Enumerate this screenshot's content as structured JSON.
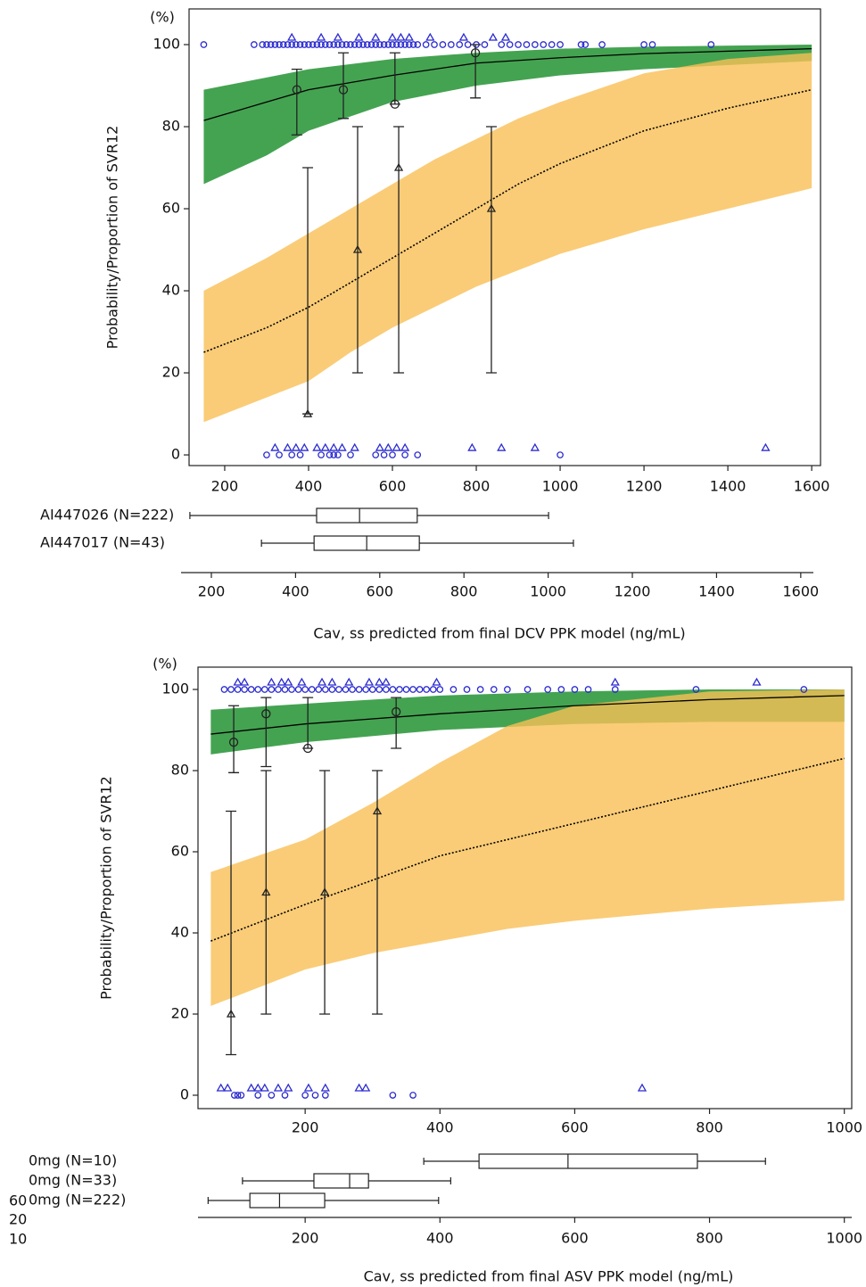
{
  "chart_data": [
    {
      "type": "line",
      "unit_label": "(%)",
      "ylabel": "Probability/Proportion of SVR12",
      "xlabel": "Cav, ss predicted from final DCV PPK model (ng/mL)",
      "xlim": [
        115,
        1621
      ],
      "xticks": [
        200,
        400,
        600,
        800,
        1000,
        1200,
        1400,
        1600
      ],
      "ylim": [
        -2.6,
        108.7
      ],
      "yticks": [
        0,
        20,
        40,
        60,
        80,
        100
      ],
      "curves": [
        {
          "style": "solid",
          "color": "#000000",
          "band_color": "#3a9e48",
          "x": [
            150,
            300,
            400,
            600,
            800,
            1000,
            1200,
            1600
          ],
          "values": [
            81.5,
            86,
            89,
            92.5,
            95.5,
            96.8,
            97.8,
            99
          ],
          "lower": [
            66,
            73,
            79,
            86,
            90,
            92.5,
            94,
            96
          ],
          "upper": [
            89,
            92,
            94,
            96.5,
            98,
            99,
            99.5,
            100
          ]
        },
        {
          "style": "dashed",
          "color": "#000000",
          "band_color": "#f9bf55",
          "x": [
            150,
            300,
            400,
            500,
            600,
            700,
            800,
            900,
            1000,
            1200,
            1400,
            1600
          ],
          "values": [
            25,
            31,
            36,
            42,
            48,
            54,
            60,
            66,
            71,
            79,
            84.5,
            89
          ],
          "lower": [
            8,
            14,
            18,
            25,
            31,
            36,
            41,
            45,
            49,
            55,
            60,
            65
          ],
          "upper": [
            40,
            48,
            54,
            60,
            66,
            72,
            77,
            82,
            86,
            93,
            96.5,
            98
          ]
        }
      ],
      "observed": [
        {
          "marker": "circle",
          "x": [
            372,
            483,
            606,
            798
          ],
          "values": [
            89,
            89,
            85.5,
            98
          ],
          "lower": [
            78,
            82,
            85.5,
            87
          ],
          "upper": [
            94,
            98,
            98,
            100
          ]
        },
        {
          "marker": "triangle",
          "x": [
            398,
            517,
            615,
            836
          ],
          "values": [
            10,
            50,
            70,
            60
          ],
          "lower": [
            10,
            20,
            20,
            20
          ],
          "upper": [
            70,
            80,
            80,
            80
          ]
        }
      ],
      "rug_color": "#2b2bd0",
      "rug": [
        {
          "marker": "circle",
          "value": 100,
          "x": [
            150,
            270,
            290,
            300,
            310,
            320,
            330,
            340,
            350,
            360,
            370,
            380,
            390,
            400,
            410,
            420,
            430,
            440,
            450,
            460,
            470,
            480,
            490,
            500,
            510,
            520,
            530,
            540,
            550,
            560,
            570,
            580,
            590,
            600,
            610,
            620,
            630,
            640,
            650,
            660,
            680,
            700,
            720,
            740,
            760,
            780,
            800,
            820,
            860,
            880,
            900,
            920,
            940,
            960,
            980,
            1000,
            1050,
            1060,
            1100,
            1200,
            1220,
            1360
          ]
        },
        {
          "marker": "triangle",
          "value": 100,
          "x": [
            360,
            430,
            470,
            520,
            560,
            600,
            620,
            640,
            690,
            770,
            840,
            870
          ]
        },
        {
          "marker": "circle",
          "value": 0,
          "x": [
            300,
            330,
            360,
            380,
            430,
            450,
            460,
            470,
            500,
            560,
            580,
            600,
            630,
            660,
            1000
          ]
        },
        {
          "marker": "triangle",
          "value": 0,
          "x": [
            320,
            350,
            370,
            390,
            420,
            440,
            460,
            480,
            510,
            570,
            590,
            610,
            630,
            790,
            860,
            940,
            1490
          ]
        }
      ],
      "boxes": {
        "xlim": [
          128,
          1630
        ],
        "xticks": [
          200,
          400,
          600,
          800,
          1000,
          1200,
          1400,
          1600
        ],
        "rows": [
          {
            "label": "AI447026 (N=222)",
            "min": 149,
            "q1": 450,
            "median": 552,
            "q3": 689,
            "max": 1001
          },
          {
            "label": "AI447017 (N=43)",
            "min": 319,
            "q1": 444,
            "median": 569,
            "q3": 694,
            "max": 1060
          }
        ]
      }
    },
    {
      "type": "line",
      "unit_label": "(%)",
      "ylabel": "Probability/Proportion of SVR12",
      "xlabel": "Cav, ss predicted from final ASV PPK model (ng/mL)",
      "xlim": [
        41,
        1011
      ],
      "xticks": [
        200,
        400,
        600,
        800,
        1000
      ],
      "ylim": [
        -3.3,
        105.5
      ],
      "yticks": [
        0,
        20,
        40,
        60,
        80,
        100
      ],
      "curves": [
        {
          "style": "solid",
          "color": "#000000",
          "band_color": "#3a9e48",
          "x": [
            60,
            200,
            400,
            600,
            800,
            1000
          ],
          "values": [
            89,
            91.5,
            94,
            96,
            97.5,
            98.5
          ],
          "lower": [
            84,
            87,
            90,
            91.5,
            92,
            92
          ],
          "upper": [
            95,
            96.5,
            98.5,
            99.5,
            100,
            100
          ]
        },
        {
          "style": "dashed",
          "color": "#000000",
          "band_color": "#f9bf55",
          "x": [
            60,
            200,
            300,
            400,
            500,
            600,
            800,
            1000
          ],
          "values": [
            38,
            47,
            53,
            59,
            63,
            67,
            75,
            83
          ],
          "lower": [
            22,
            31,
            35,
            38,
            41,
            43,
            46,
            48
          ],
          "upper": [
            55,
            63,
            72,
            82,
            91,
            96,
            99.5,
            100
          ]
        }
      ],
      "observed": [
        {
          "marker": "circle",
          "x": [
            94,
            142,
            204,
            335
          ],
          "values": [
            87,
            94,
            85.5,
            94.5
          ],
          "lower": [
            79.5,
            81,
            85.5,
            85.5
          ],
          "upper": [
            96,
            98,
            98,
            98
          ]
        },
        {
          "marker": "triangle",
          "x": [
            90,
            142,
            229,
            307
          ],
          "values": [
            20,
            50,
            50,
            70
          ],
          "lower": [
            10,
            20,
            20,
            20
          ],
          "upper": [
            70,
            80,
            80,
            80
          ]
        }
      ],
      "rug_color": "#2b2bd0",
      "rug": [
        {
          "marker": "circle",
          "value": 100,
          "x": [
            80,
            90,
            100,
            110,
            120,
            130,
            140,
            150,
            160,
            170,
            180,
            190,
            200,
            210,
            220,
            230,
            240,
            250,
            260,
            270,
            280,
            290,
            300,
            310,
            320,
            330,
            340,
            350,
            360,
            370,
            380,
            390,
            400,
            420,
            440,
            460,
            480,
            500,
            530,
            560,
            580,
            600,
            620,
            660,
            780,
            940
          ]
        },
        {
          "marker": "triangle",
          "value": 100,
          "x": [
            100,
            110,
            150,
            165,
            175,
            195,
            225,
            240,
            265,
            295,
            310,
            320,
            395,
            660,
            870
          ]
        },
        {
          "marker": "circle",
          "value": 0,
          "x": [
            95,
            100,
            105,
            130,
            150,
            170,
            200,
            215,
            230,
            330,
            360
          ]
        },
        {
          "marker": "triangle",
          "value": 0,
          "x": [
            75,
            85,
            120,
            130,
            140,
            160,
            175,
            205,
            230,
            280,
            290,
            700
          ]
        }
      ],
      "boxes": {
        "xlim": [
          41,
          1011
        ],
        "xticks": [
          200,
          400,
          600,
          800,
          1000
        ],
        "rows": [
          {
            "label": "0mg (N=10)",
            "min": 376,
            "q1": 458,
            "median": 590,
            "q3": 782,
            "max": 883
          },
          {
            "label": "0mg (N=33)",
            "min": 107,
            "q1": 213,
            "median": 266,
            "q3": 294,
            "max": 416
          },
          {
            "label": "0mg (N=222)",
            "min": 56,
            "q1": 118,
            "median": 162,
            "q3": 229,
            "max": 398
          }
        ],
        "stray_labels": [
          "60",
          "20",
          "10"
        ]
      }
    }
  ]
}
